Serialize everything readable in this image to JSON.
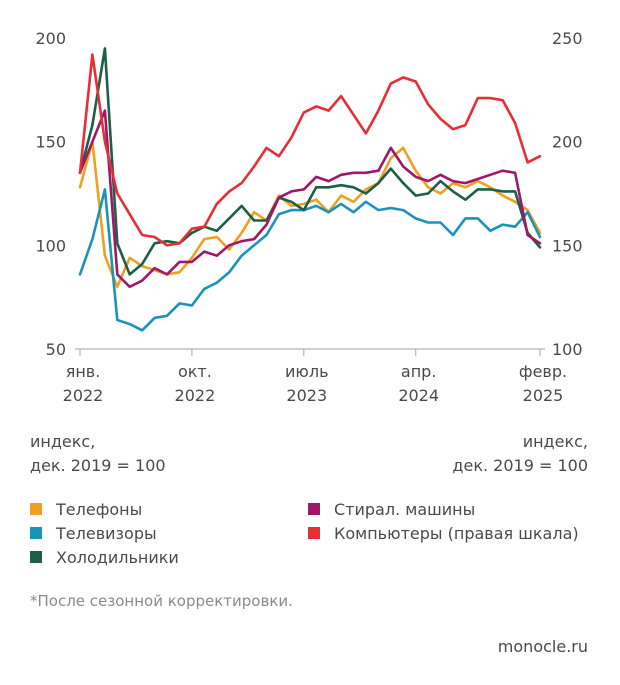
{
  "chart_data": {
    "type": "line",
    "x": [
      "2022-01",
      "2022-02",
      "2022-03",
      "2022-04",
      "2022-05",
      "2022-06",
      "2022-07",
      "2022-08",
      "2022-09",
      "2022-10",
      "2022-11",
      "2022-12",
      "2023-01",
      "2023-02",
      "2023-03",
      "2023-04",
      "2023-05",
      "2023-06",
      "2023-07",
      "2023-08",
      "2023-09",
      "2023-10",
      "2023-11",
      "2023-12",
      "2024-01",
      "2024-02",
      "2024-03",
      "2024-04",
      "2024-05",
      "2024-06",
      "2024-07",
      "2024-08",
      "2024-09",
      "2024-10",
      "2024-11",
      "2024-12",
      "2025-01",
      "2025-02"
    ],
    "x_ticks": [
      {
        "x": "2022-01",
        "line1": "янв.",
        "line2": "2022"
      },
      {
        "x": "2022-10",
        "line1": "окт.",
        "line2": "2022"
      },
      {
        "x": "2023-07",
        "line1": "июль",
        "line2": "2023"
      },
      {
        "x": "2024-04",
        "line1": "апр.",
        "line2": "2024"
      },
      {
        "x": "2025-02",
        "line1": "февр.",
        "line2": "2025"
      }
    ],
    "y_left": {
      "range": [
        50,
        200
      ],
      "ticks": [
        "200",
        "150",
        "100",
        "50"
      ],
      "label": [
        "индекс,",
        "дек. 2019 = 100"
      ]
    },
    "y_right": {
      "range": [
        100,
        250
      ],
      "ticks": [
        "250",
        "200",
        "150",
        "100"
      ],
      "label": [
        "индекс,",
        "дек. 2019 = 100"
      ]
    },
    "grid": false,
    "legend_position": "bottom",
    "series": [
      {
        "name": "Телефоны",
        "color": "#f0a020",
        "axis": "left",
        "values": [
          128,
          150,
          95,
          80,
          94,
          90,
          88,
          86,
          87,
          94,
          103,
          104,
          98,
          106,
          116,
          112,
          124,
          119,
          120,
          122,
          116,
          124,
          121,
          127,
          130,
          142,
          147,
          136,
          128,
          125,
          130,
          128,
          131,
          128,
          124,
          121,
          117,
          106
        ]
      },
      {
        "name": "Телевизоры",
        "color": "#1a93bb",
        "axis": "left",
        "values": [
          86,
          103,
          127,
          64,
          62,
          59,
          65,
          66,
          72,
          71,
          79,
          82,
          87,
          95,
          100,
          105,
          115,
          117,
          117,
          119,
          116,
          120,
          116,
          121,
          117,
          118,
          117,
          113,
          111,
          111,
          105,
          113,
          113,
          107,
          110,
          109,
          116,
          104
        ]
      },
      {
        "name": "Холодильники",
        "color": "#1d5e47",
        "axis": "left",
        "values": [
          135,
          158,
          195,
          101,
          86,
          91,
          101,
          102,
          101,
          106,
          109,
          107,
          113,
          119,
          112,
          112,
          123,
          121,
          117,
          128,
          128,
          129,
          128,
          125,
          130,
          137,
          130,
          124,
          125,
          131,
          126,
          122,
          127,
          127,
          126,
          126,
          106,
          99
        ]
      },
      {
        "name": "Стирал. машины",
        "color": "#a0176a",
        "axis": "left",
        "values": [
          135,
          150,
          165,
          86,
          80,
          83,
          89,
          86,
          92,
          92,
          97,
          95,
          100,
          102,
          103,
          110,
          123,
          126,
          127,
          133,
          131,
          134,
          135,
          135,
          136,
          147,
          138,
          133,
          131,
          134,
          131,
          130,
          132,
          134,
          136,
          135,
          105,
          101
        ]
      },
      {
        "name": "Компьютеры (правая шкала)",
        "color": "#e52f35",
        "axis": "right",
        "values": [
          185,
          242,
          200,
          175,
          165,
          155,
          154,
          150,
          151,
          158,
          159,
          170,
          176,
          180,
          188,
          197,
          193,
          202,
          214,
          217,
          215,
          222,
          213,
          204,
          215,
          228,
          231,
          229,
          218,
          211,
          206,
          208,
          221,
          221,
          220,
          209,
          190,
          193
        ]
      }
    ]
  },
  "footnote": "*После сезонной корректировки.",
  "source": "monocle.ru"
}
